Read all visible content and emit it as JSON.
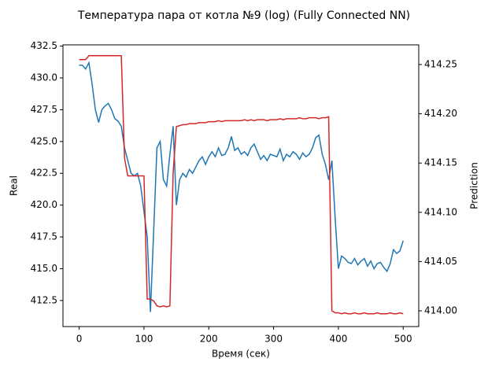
{
  "chart_data": {
    "type": "line",
    "title": "Температура пара от котла №9 (log) (Fully Connected NN)",
    "x_label": "Время (сек)",
    "y_label": "Real",
    "y2_label": "Prediction",
    "x": [
      0,
      5,
      10,
      15,
      20,
      25,
      30,
      35,
      40,
      45,
      50,
      55,
      60,
      65,
      70,
      75,
      80,
      85,
      90,
      95,
      100,
      105,
      110,
      115,
      120,
      125,
      130,
      135,
      140,
      145,
      150,
      155,
      160,
      165,
      170,
      175,
      180,
      185,
      190,
      195,
      200,
      205,
      210,
      215,
      220,
      225,
      230,
      235,
      240,
      245,
      250,
      255,
      260,
      265,
      270,
      275,
      280,
      285,
      290,
      295,
      300,
      305,
      310,
      315,
      320,
      325,
      330,
      335,
      340,
      345,
      350,
      355,
      360,
      365,
      370,
      375,
      380,
      385,
      390,
      395,
      400,
      405,
      410,
      415,
      420,
      425,
      430,
      435,
      440,
      445,
      450,
      455,
      460,
      465,
      470,
      475,
      480,
      485,
      490,
      495,
      500
    ],
    "series": [
      {
        "color": "#1f77b4",
        "values": [
          431.0,
          431.0,
          430.7,
          431.2,
          429.5,
          427.5,
          426.5,
          427.5,
          427.8,
          428.0,
          427.5,
          426.8,
          426.6,
          426.2,
          424.5,
          423.5,
          422.5,
          422.3,
          422.5,
          421.5,
          419.5,
          417.5,
          411.6,
          418.0,
          424.5,
          425.0,
          422.0,
          421.5,
          424.0,
          426.2,
          420.0,
          422.0,
          422.5,
          422.2,
          422.8,
          422.5,
          423.0,
          423.5,
          423.8,
          423.2,
          423.8,
          424.2,
          423.8,
          424.5,
          423.9,
          424.0,
          424.5,
          425.4,
          424.3,
          424.5,
          424.0,
          424.2,
          423.9,
          424.5,
          424.8,
          424.2,
          423.6,
          423.9,
          423.5,
          424.0,
          423.9,
          423.8,
          424.4,
          423.5,
          424.0,
          423.8,
          424.2,
          424.0,
          423.6,
          424.1,
          423.8,
          424.0,
          424.5,
          425.3,
          425.5,
          424.0,
          423.2,
          422.0,
          423.5,
          419.0,
          415.0,
          416.0,
          415.8,
          415.5,
          415.4,
          415.8,
          415.3,
          415.6,
          415.8,
          415.2,
          415.6,
          415.0,
          415.4,
          415.5,
          415.1,
          414.8,
          415.4,
          416.5,
          416.2,
          416.4,
          417.2
        ]
      },
      {
        "color": "#d62728",
        "axis": "y2",
        "values": [
          414.255,
          414.255,
          414.255,
          414.259,
          414.259,
          414.259,
          414.259,
          414.259,
          414.259,
          414.259,
          414.259,
          414.259,
          414.259,
          414.259,
          414.155,
          414.137,
          414.137,
          414.137,
          414.137,
          414.137,
          414.137,
          414.012,
          414.012,
          414.01,
          414.005,
          414.004,
          414.005,
          414.004,
          414.005,
          414.14,
          414.187,
          414.188,
          414.189,
          414.189,
          414.19,
          414.19,
          414.19,
          414.191,
          414.191,
          414.191,
          414.192,
          414.192,
          414.192,
          414.193,
          414.192,
          414.193,
          414.193,
          414.193,
          414.193,
          414.193,
          414.193,
          414.194,
          414.193,
          414.194,
          414.193,
          414.194,
          414.194,
          414.194,
          414.193,
          414.194,
          414.194,
          414.194,
          414.195,
          414.194,
          414.195,
          414.195,
          414.195,
          414.195,
          414.196,
          414.195,
          414.195,
          414.196,
          414.196,
          414.196,
          414.195,
          414.196,
          414.196,
          414.197,
          414.0,
          413.998,
          413.998,
          413.997,
          413.998,
          413.997,
          413.997,
          413.998,
          413.997,
          413.997,
          413.998,
          413.997,
          413.997,
          413.997,
          413.998,
          413.997,
          413.997,
          413.997,
          413.998,
          413.997,
          413.997,
          413.998,
          413.997
        ]
      }
    ],
    "xlim": [
      -25,
      524
    ],
    "xticks": [
      0,
      100,
      200,
      300,
      400,
      500
    ],
    "ylim": [
      410.45,
      432.6
    ],
    "yticks": [
      412.5,
      {
        "value": 415,
        "label": "415.0"
      },
      417.5,
      {
        "value": 420,
        "label": "420.0"
      },
      422.5,
      {
        "value": 425,
        "label": "425.0"
      },
      427.5,
      {
        "value": 430,
        "label": "430.0"
      },
      432.5
    ],
    "y2lim": [
      413.984,
      414.27
    ],
    "y2ticks": [
      {
        "value": 414,
        "label": "414.00"
      },
      414.05,
      {
        "value": 414.1,
        "label": "414.10"
      },
      414.15,
      {
        "value": 414.2,
        "label": "414.20"
      },
      414.25
    ]
  }
}
